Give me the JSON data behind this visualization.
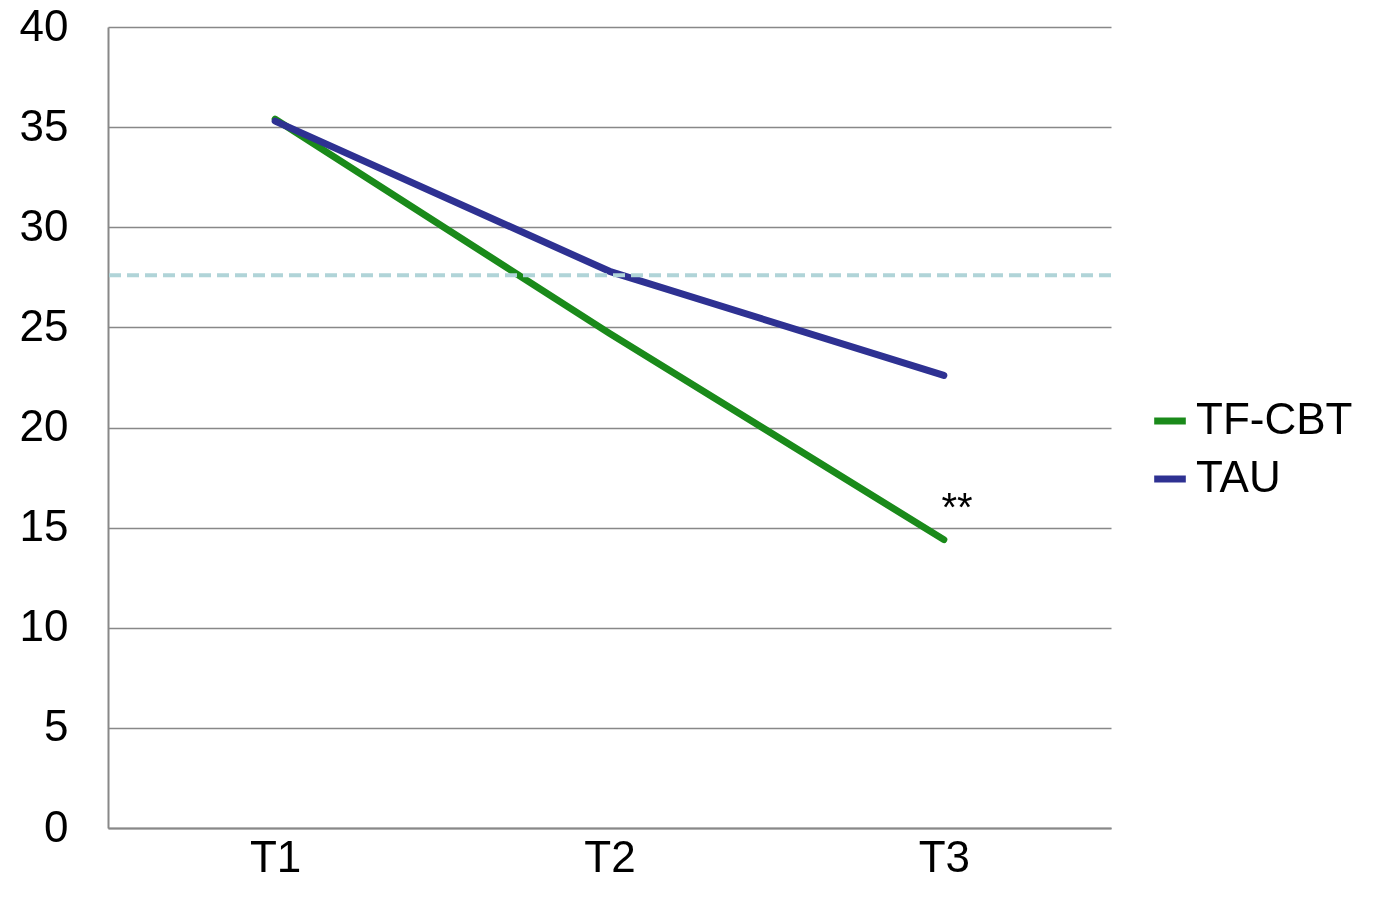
{
  "chart_data": {
    "type": "line",
    "categories": [
      "T1",
      "T2",
      "T3"
    ],
    "series": [
      {
        "name": "TF-CBT",
        "color": "#1a8a1a",
        "values": [
          35.4,
          24.7,
          14.4
        ]
      },
      {
        "name": "TAU",
        "color": "#2e3192",
        "values": [
          35.3,
          27.8,
          22.6
        ]
      }
    ],
    "ylim": [
      0,
      40
    ],
    "yticks": [
      0,
      5,
      10,
      15,
      20,
      25,
      30,
      35,
      40
    ],
    "grid": "y",
    "legend": "right",
    "marker": "none",
    "line_style": "solid",
    "ref_lines": [
      {
        "axis": "y",
        "value": 27.6,
        "color": "#b0d4d8",
        "line_style": "dashed"
      }
    ],
    "annotations": [
      "**"
    ]
  }
}
